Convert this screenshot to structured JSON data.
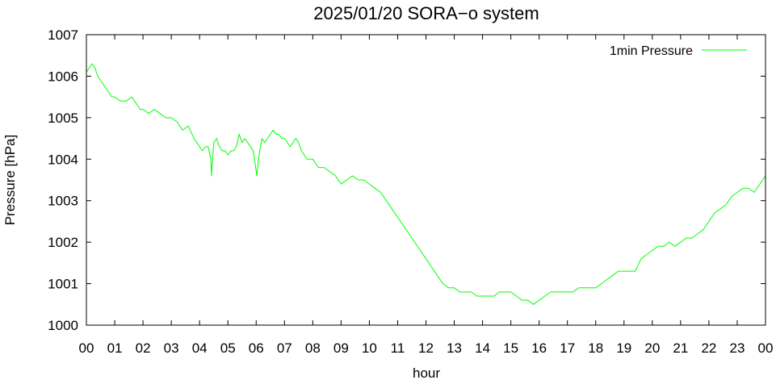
{
  "chart_data": {
    "type": "line",
    "title": "2025/01/20 SORA−o system",
    "xlabel": "hour",
    "ylabel": "Pressure [hPa]",
    "xlim": [
      0,
      24
    ],
    "ylim": [
      1000,
      1007
    ],
    "x_ticks": [
      0,
      1,
      2,
      3,
      4,
      5,
      6,
      7,
      8,
      9,
      10,
      11,
      12,
      13,
      14,
      15,
      16,
      17,
      18,
      19,
      20,
      21,
      22,
      23,
      24
    ],
    "x_tick_labels": [
      "00",
      "01",
      "02",
      "03",
      "04",
      "05",
      "06",
      "07",
      "08",
      "09",
      "10",
      "11",
      "12",
      "13",
      "14",
      "15",
      "16",
      "17",
      "18",
      "19",
      "20",
      "21",
      "22",
      "23",
      "00"
    ],
    "y_ticks": [
      1000,
      1001,
      1002,
      1003,
      1004,
      1005,
      1006,
      1007
    ],
    "y_tick_labels": [
      "1000",
      "1001",
      "1002",
      "1003",
      "1004",
      "1005",
      "1006",
      "1007"
    ],
    "grid": false,
    "legend_position": "top-right",
    "series": [
      {
        "name": "1min Pressure",
        "color": "#00ff00",
        "x": [
          0.0,
          0.1,
          0.2,
          0.3,
          0.4,
          0.5,
          0.6,
          0.7,
          0.8,
          0.9,
          1.0,
          1.2,
          1.4,
          1.6,
          1.7,
          1.8,
          1.9,
          2.0,
          2.2,
          2.4,
          2.6,
          2.8,
          3.0,
          3.2,
          3.4,
          3.6,
          3.8,
          3.9,
          4.0,
          4.1,
          4.2,
          4.3,
          4.4,
          4.42,
          4.5,
          4.6,
          4.7,
          4.8,
          4.9,
          5.0,
          5.1,
          5.2,
          5.3,
          5.4,
          5.5,
          5.6,
          5.7,
          5.8,
          5.9,
          6.0,
          6.02,
          6.1,
          6.2,
          6.3,
          6.4,
          6.5,
          6.6,
          6.7,
          6.8,
          6.9,
          7.0,
          7.1,
          7.2,
          7.3,
          7.4,
          7.5,
          7.6,
          7.7,
          7.8,
          7.9,
          8.0,
          8.2,
          8.4,
          8.6,
          8.8,
          9.0,
          9.2,
          9.4,
          9.6,
          9.8,
          10.0,
          10.2,
          10.4,
          10.6,
          10.8,
          11.0,
          11.2,
          11.4,
          11.6,
          11.8,
          12.0,
          12.2,
          12.4,
          12.6,
          12.8,
          13.0,
          13.2,
          13.4,
          13.6,
          13.8,
          14.0,
          14.2,
          14.4,
          14.6,
          14.8,
          15.0,
          15.2,
          15.4,
          15.6,
          15.8,
          16.0,
          16.2,
          16.4,
          16.6,
          16.8,
          17.0,
          17.2,
          17.4,
          17.6,
          17.8,
          18.0,
          18.2,
          18.4,
          18.6,
          18.8,
          19.0,
          19.2,
          19.4,
          19.6,
          19.8,
          20.0,
          20.2,
          20.4,
          20.6,
          20.8,
          21.0,
          21.2,
          21.4,
          21.6,
          21.8,
          22.0,
          22.2,
          22.4,
          22.6,
          22.8,
          23.0,
          23.2,
          23.4,
          23.6,
          23.8,
          24.0
        ],
        "y": [
          1006.1,
          1006.2,
          1006.3,
          1006.2,
          1006.0,
          1005.9,
          1005.8,
          1005.7,
          1005.6,
          1005.5,
          1005.5,
          1005.4,
          1005.4,
          1005.5,
          1005.4,
          1005.3,
          1005.2,
          1005.2,
          1005.1,
          1005.2,
          1005.1,
          1005.0,
          1005.0,
          1004.9,
          1004.7,
          1004.8,
          1004.5,
          1004.4,
          1004.3,
          1004.2,
          1004.3,
          1004.3,
          1004.0,
          1003.6,
          1004.4,
          1004.5,
          1004.3,
          1004.2,
          1004.2,
          1004.1,
          1004.2,
          1004.2,
          1004.3,
          1004.6,
          1004.4,
          1004.5,
          1004.4,
          1004.3,
          1004.2,
          1003.7,
          1003.6,
          1004.1,
          1004.5,
          1004.4,
          1004.5,
          1004.6,
          1004.7,
          1004.6,
          1004.6,
          1004.5,
          1004.5,
          1004.4,
          1004.3,
          1004.4,
          1004.5,
          1004.4,
          1004.2,
          1004.1,
          1004.0,
          1004.0,
          1004.0,
          1003.8,
          1003.8,
          1003.7,
          1003.6,
          1003.4,
          1003.5,
          1003.6,
          1003.5,
          1003.5,
          1003.4,
          1003.3,
          1003.2,
          1003.0,
          1002.8,
          1002.6,
          1002.4,
          1002.2,
          1002.0,
          1001.8,
          1001.6,
          1001.4,
          1001.2,
          1001.0,
          1000.9,
          1000.9,
          1000.8,
          1000.8,
          1000.8,
          1000.7,
          1000.7,
          1000.7,
          1000.7,
          1000.8,
          1000.8,
          1000.8,
          1000.7,
          1000.6,
          1000.6,
          1000.5,
          1000.6,
          1000.7,
          1000.8,
          1000.8,
          1000.8,
          1000.8,
          1000.8,
          1000.9,
          1000.9,
          1000.9,
          1000.9,
          1001.0,
          1001.1,
          1001.2,
          1001.3,
          1001.3,
          1001.3,
          1001.3,
          1001.6,
          1001.7,
          1001.8,
          1001.9,
          1001.9,
          1002.0,
          1001.9,
          1002.0,
          1002.1,
          1002.1,
          1002.2,
          1002.3,
          1002.5,
          1002.7,
          1002.8,
          1002.9,
          1003.1,
          1003.2,
          1003.3,
          1003.3,
          1003.2,
          1003.4,
          1003.6
        ]
      }
    ]
  }
}
